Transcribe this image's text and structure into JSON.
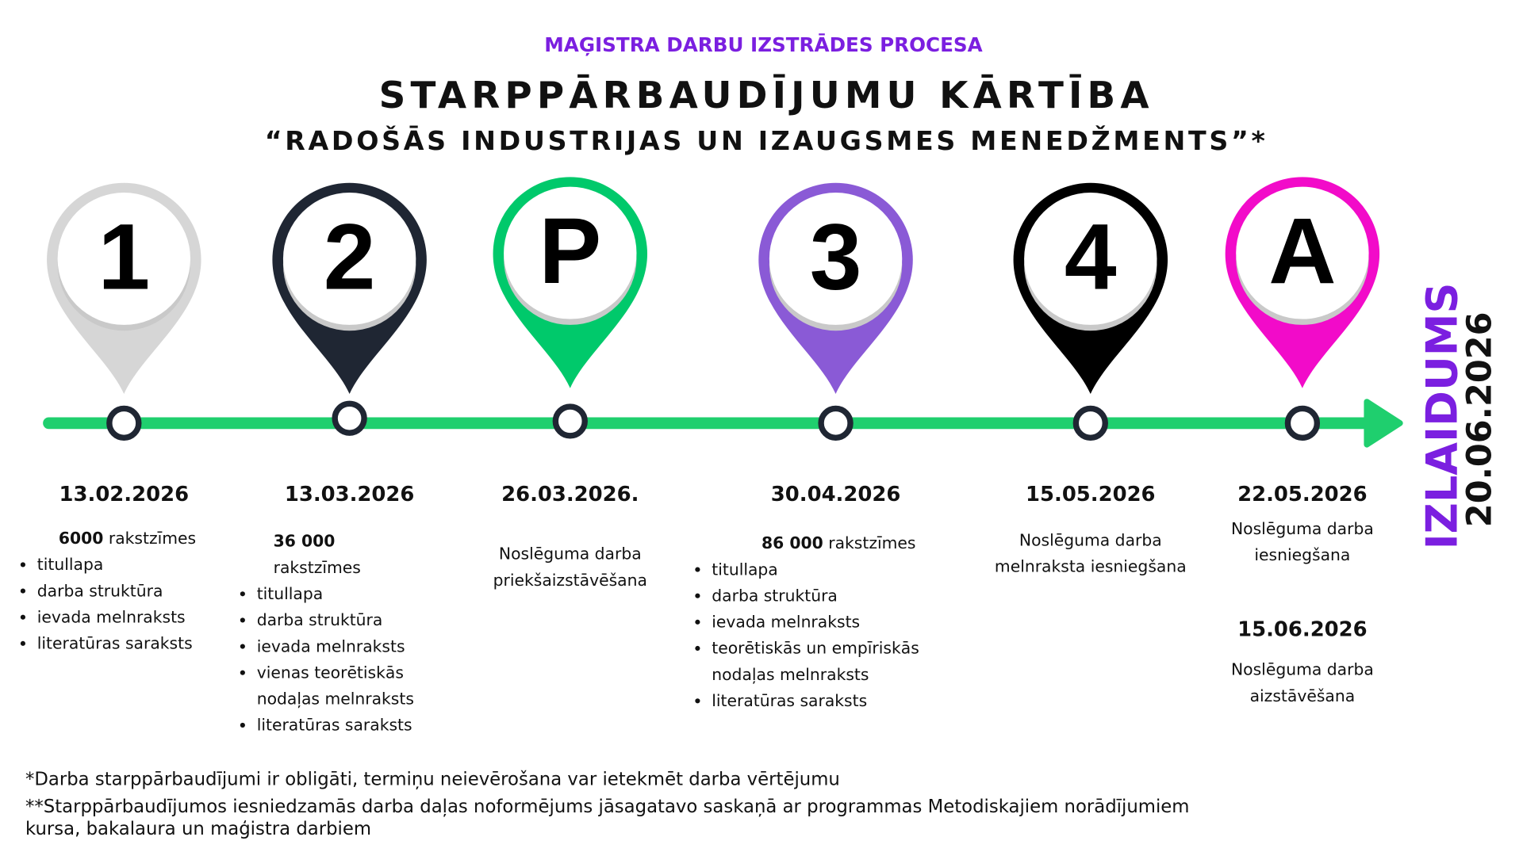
{
  "header": {
    "supertitle": "MAĢISTRA DARBU IZSTRĀDES PROCESA",
    "title": "STARPPĀRBAUDĪJUMU KĀRTĪBA",
    "subtitle": "“RADOŠĀS INDUSTRIJAS UN IZAUGSMES MENEDŽMENTS”*"
  },
  "colors": {
    "timeline": "#1fcf6e",
    "marker_stroke": "#1f2633",
    "supertitle": "#7b1fe0",
    "release": "#7b1fe0"
  },
  "milestones": [
    {
      "label": "1",
      "color": "#d6d6d6",
      "date": "13.02.2026",
      "chars_num": "6000",
      "chars_word": "rakstzīmes",
      "items": [
        "titullapa",
        "darba struktūra",
        "ievada melnraksts",
        "literatūras saraksts"
      ]
    },
    {
      "label": "2",
      "color": "#1f2633",
      "date": "13.03.2026",
      "chars_num": "36 000",
      "chars_word": "rakstzīmes",
      "items": [
        "titullapa",
        "darba struktūra",
        "ievada melnraksts",
        "vienas teorētiskās nodaļas melnraksts",
        "literatūras saraksts"
      ]
    },
    {
      "label": "P",
      "color": "#00c96b",
      "date": "26.03.2026.",
      "text": [
        "Noslēguma darba",
        "priekšaizstāvēšana"
      ]
    },
    {
      "label": "3",
      "color": "#8a5ad6",
      "date": "30.04.2026",
      "chars_num": "86 000",
      "chars_word": "rakstzīmes",
      "items": [
        "titullapa",
        "darba struktūra",
        "ievada melnraksts",
        "teorētiskās un empīriskās nodaļas melnraksts",
        "literatūras saraksts"
      ]
    },
    {
      "label": "4",
      "color": "#000000",
      "date": "15.05.2026",
      "text": [
        "Noslēguma darba",
        "melnraksta iesniegšana"
      ]
    },
    {
      "label": "A",
      "color": "#f20bc9",
      "date": "22.05.2026",
      "text": [
        "Noslēguma darba",
        "iesniegšana"
      ],
      "date2": "15.06.2026",
      "text2": [
        "Noslēguma darba",
        "aizstāvēšana"
      ]
    }
  ],
  "release": {
    "label": "IZLAIDUMS",
    "date": "20.06.2026"
  },
  "footnotes": [
    "*Darba starppārbaudījumi ir obligāti, termiņu neievērošana var ietekmēt darba vērtējumu",
    "**Starppārbaudījumos iesniedzamās darba daļas noformējums jāsagatavo saskaņā ar programmas Metodiskajiem norādījumiem",
    "kursa, bakalaura un maģistra darbiem"
  ]
}
